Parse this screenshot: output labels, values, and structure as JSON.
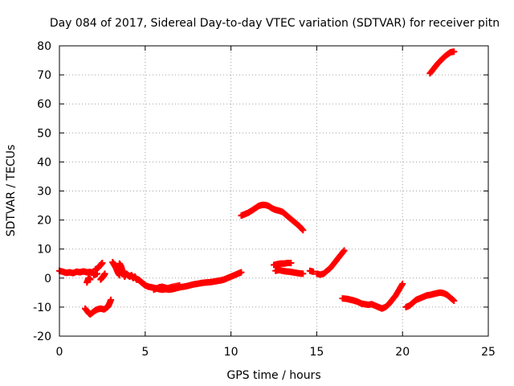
{
  "chart_data": {
    "type": "scatter",
    "title": "Day 084 of 2017, Sidereal Day-to-day VTEC variation (SDTVAR) for receiver pitn",
    "xlabel": "GPS time / hours",
    "ylabel": "SDTVAR / TECUs",
    "xlim": [
      0,
      25
    ],
    "ylim": [
      -20,
      80
    ],
    "xticks": [
      0,
      5,
      10,
      15,
      20,
      25
    ],
    "yticks": [
      -20,
      -10,
      0,
      10,
      20,
      30,
      40,
      50,
      60,
      70,
      80
    ],
    "xtick_labels": [
      "0",
      "5",
      "10",
      "15",
      "20",
      "25"
    ],
    "ytick_labels": [
      "-20",
      "-10",
      "0",
      "10",
      "20",
      "30",
      "40",
      "50",
      "60",
      "70",
      "80"
    ],
    "grid": true,
    "marker": "+",
    "color": "#ff0000",
    "series": [
      {
        "name": "SDTVAR",
        "segments": [
          [
            [
              0.0,
              2.5
            ],
            [
              0.2,
              2.2
            ],
            [
              0.4,
              1.8
            ],
            [
              0.6,
              2.0
            ],
            [
              0.8,
              1.7
            ],
            [
              1.0,
              2.2
            ],
            [
              1.2,
              2.0
            ],
            [
              1.4,
              2.3
            ],
            [
              1.6,
              2.0
            ],
            [
              1.8,
              2.1
            ],
            [
              2.0,
              1.8
            ]
          ],
          [
            [
              1.6,
              -1.5
            ],
            [
              1.7,
              0.0
            ],
            [
              1.8,
              -0.5
            ]
          ],
          [
            [
              2.1,
              3.0
            ],
            [
              2.25,
              3.5
            ],
            [
              2.4,
              4.5
            ],
            [
              2.5,
              5.2
            ]
          ],
          [
            [
              2.0,
              1.0
            ],
            [
              2.2,
              1.5
            ]
          ],
          [
            [
              2.4,
              -0.5
            ],
            [
              2.55,
              0.5
            ],
            [
              2.65,
              1.5
            ]
          ],
          [
            [
              1.5,
              -10.5
            ],
            [
              1.7,
              -12.0
            ],
            [
              1.8,
              -12.5
            ],
            [
              2.0,
              -11.5
            ],
            [
              2.2,
              -10.8
            ],
            [
              2.4,
              -10.5
            ],
            [
              2.6,
              -10.8
            ],
            [
              2.8,
              -10.0
            ],
            [
              2.9,
              -9.0
            ],
            [
              3.0,
              -7.5
            ]
          ],
          [
            [
              3.1,
              5.5
            ],
            [
              3.2,
              4.5
            ],
            [
              3.3,
              3.5
            ],
            [
              3.4,
              2.0
            ],
            [
              3.5,
              1.0
            ]
          ],
          [
            [
              3.5,
              5.0
            ],
            [
              3.6,
              4.0
            ],
            [
              3.7,
              2.0
            ],
            [
              3.8,
              0.5
            ],
            [
              3.9,
              1.5
            ],
            [
              4.0,
              1.0
            ],
            [
              4.1,
              0.5
            ],
            [
              4.2,
              1.0
            ],
            [
              4.3,
              0.0
            ],
            [
              4.4,
              0.5
            ],
            [
              4.5,
              -0.5
            ],
            [
              4.6,
              -0.5
            ],
            [
              4.7,
              -1.0
            ],
            [
              4.8,
              -1.5
            ],
            [
              4.9,
              -2.0
            ],
            [
              5.0,
              -2.5
            ],
            [
              5.2,
              -3.0
            ],
            [
              5.4,
              -3.2
            ],
            [
              5.6,
              -3.5
            ],
            [
              5.8,
              -3.8
            ],
            [
              6.0,
              -4.0
            ],
            [
              6.2,
              -3.8
            ],
            [
              6.4,
              -4.0
            ],
            [
              6.6,
              -3.8
            ],
            [
              6.8,
              -3.5
            ],
            [
              7.0,
              -3.2
            ],
            [
              7.2,
              -3.0
            ],
            [
              7.4,
              -2.8
            ],
            [
              7.6,
              -2.5
            ],
            [
              7.8,
              -2.2
            ],
            [
              8.0,
              -2.0
            ],
            [
              8.2,
              -1.8
            ],
            [
              8.4,
              -1.6
            ],
            [
              8.6,
              -1.5
            ],
            [
              8.8,
              -1.4
            ],
            [
              9.0,
              -1.2
            ],
            [
              9.2,
              -1.0
            ],
            [
              9.4,
              -0.8
            ],
            [
              9.6,
              -0.5
            ],
            [
              9.8,
              0.0
            ],
            [
              10.0,
              0.5
            ],
            [
              10.2,
              1.0
            ],
            [
              10.4,
              1.5
            ],
            [
              10.6,
              2.0
            ]
          ],
          [
            [
              5.5,
              -4.0
            ],
            [
              5.8,
              -3.2
            ],
            [
              6.0,
              -3.0
            ],
            [
              6.3,
              -3.5
            ],
            [
              6.6,
              -3.0
            ],
            [
              7.0,
              -2.5
            ]
          ],
          [
            [
              10.6,
              21.5
            ],
            [
              10.8,
              22.0
            ],
            [
              11.0,
              22.5
            ],
            [
              11.2,
              23.2
            ],
            [
              11.4,
              24.0
            ],
            [
              11.6,
              24.8
            ],
            [
              11.8,
              25.2
            ],
            [
              12.0,
              25.2
            ],
            [
              12.2,
              24.8
            ],
            [
              12.4,
              24.0
            ],
            [
              12.6,
              23.5
            ],
            [
              12.8,
              23.2
            ],
            [
              13.0,
              22.8
            ],
            [
              13.2,
              21.8
            ],
            [
              13.4,
              20.8
            ],
            [
              13.6,
              19.8
            ],
            [
              13.8,
              18.8
            ],
            [
              14.0,
              17.8
            ],
            [
              14.2,
              16.5
            ]
          ],
          [
            [
              12.5,
              4.5
            ],
            [
              12.7,
              4.8
            ],
            [
              12.9,
              5.0
            ],
            [
              13.1,
              5.0
            ],
            [
              13.3,
              5.2
            ],
            [
              13.5,
              5.2
            ]
          ],
          [
            [
              12.6,
              2.5
            ],
            [
              12.8,
              2.8
            ],
            [
              13.0,
              2.5
            ],
            [
              13.2,
              2.3
            ],
            [
              13.4,
              2.2
            ],
            [
              13.6,
              2.0
            ],
            [
              13.8,
              1.8
            ],
            [
              14.0,
              1.6
            ],
            [
              14.2,
              1.5
            ]
          ],
          [
            [
              14.6,
              2.5
            ],
            [
              14.8,
              2.2
            ]
          ],
          [
            [
              15.0,
              1.5
            ],
            [
              15.2,
              1.2
            ],
            [
              15.4,
              1.5
            ],
            [
              15.6,
              2.5
            ],
            [
              15.8,
              3.5
            ],
            [
              16.0,
              5.0
            ],
            [
              16.2,
              6.5
            ],
            [
              16.4,
              8.0
            ],
            [
              16.6,
              9.5
            ]
          ],
          [
            [
              16.5,
              -7.0
            ],
            [
              16.8,
              -7.2
            ],
            [
              17.0,
              -7.5
            ],
            [
              17.2,
              -7.8
            ],
            [
              17.4,
              -8.2
            ],
            [
              17.6,
              -8.8
            ],
            [
              17.8,
              -9.0
            ],
            [
              18.0,
              -9.2
            ],
            [
              18.2,
              -9.0
            ],
            [
              18.4,
              -9.5
            ],
            [
              18.6,
              -10.0
            ],
            [
              18.8,
              -10.5
            ],
            [
              19.0,
              -10.0
            ],
            [
              19.2,
              -9.0
            ],
            [
              19.4,
              -7.5
            ],
            [
              19.6,
              -6.0
            ],
            [
              19.8,
              -4.0
            ],
            [
              20.0,
              -2.0
            ]
          ],
          [
            [
              20.2,
              -10.0
            ],
            [
              20.4,
              -9.5
            ],
            [
              20.6,
              -8.5
            ],
            [
              20.8,
              -7.5
            ],
            [
              21.0,
              -7.0
            ],
            [
              21.2,
              -6.5
            ],
            [
              21.4,
              -6.0
            ],
            [
              21.6,
              -5.8
            ],
            [
              21.8,
              -5.5
            ],
            [
              22.0,
              -5.2
            ],
            [
              22.2,
              -5.0
            ],
            [
              22.4,
              -5.2
            ],
            [
              22.6,
              -5.8
            ],
            [
              22.8,
              -6.8
            ],
            [
              23.0,
              -7.8
            ]
          ],
          [
            [
              21.6,
              70.5
            ],
            [
              21.8,
              72.0
            ],
            [
              22.0,
              73.5
            ],
            [
              22.2,
              74.8
            ],
            [
              22.4,
              76.0
            ],
            [
              22.6,
              77.0
            ],
            [
              22.8,
              77.8
            ],
            [
              23.0,
              78.0
            ]
          ]
        ]
      }
    ]
  }
}
